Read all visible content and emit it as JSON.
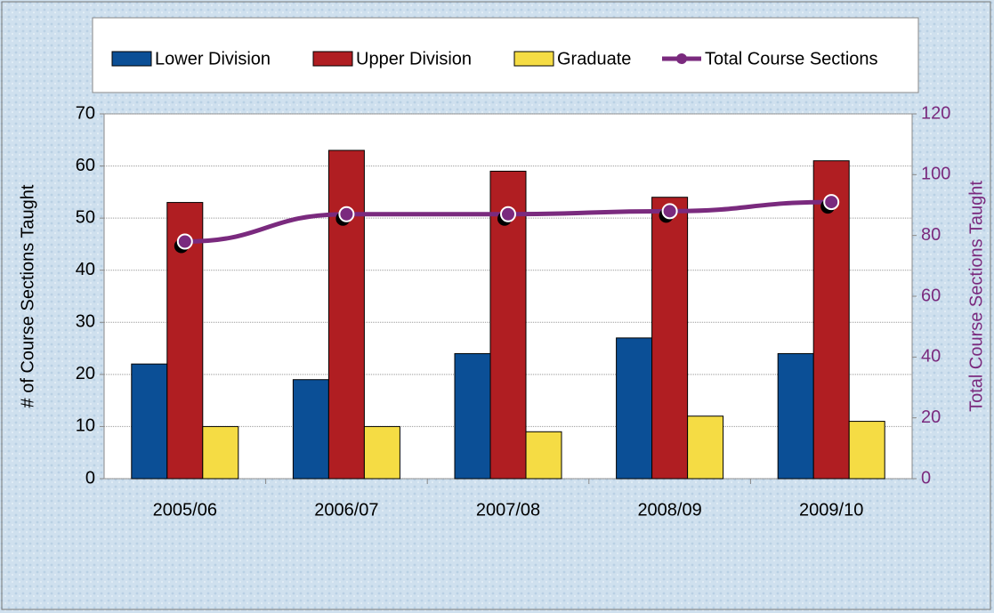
{
  "chart_data": {
    "type": "bar_line",
    "categories": [
      "2005/06",
      "2006/07",
      "2007/08",
      "2008/09",
      "2009/10"
    ],
    "series": [
      {
        "name": "Lower Division",
        "color": "#0b4f96",
        "values": [
          22,
          19,
          24,
          27,
          24
        ]
      },
      {
        "name": "Upper Division",
        "color": "#b01e22",
        "values": [
          53,
          63,
          59,
          54,
          61
        ]
      },
      {
        "name": "Graduate",
        "color": "#f5dc44",
        "values": [
          10,
          10,
          9,
          12,
          11
        ]
      },
      {
        "name": "Total Course Sections",
        "color": "#7a2a7e",
        "axis": "y2",
        "values": [
          78,
          87,
          87,
          88,
          91
        ]
      }
    ],
    "ylabel": "# of Course Sections Taught",
    "y2label": "Total Course Sections Taught",
    "ylim": [
      0,
      70
    ],
    "yticks": [
      0,
      10,
      20,
      30,
      40,
      50,
      60,
      70
    ],
    "y2lim": [
      0,
      120
    ],
    "y2ticks": [
      0,
      20,
      40,
      60,
      80,
      100,
      120
    ],
    "grid": true
  }
}
